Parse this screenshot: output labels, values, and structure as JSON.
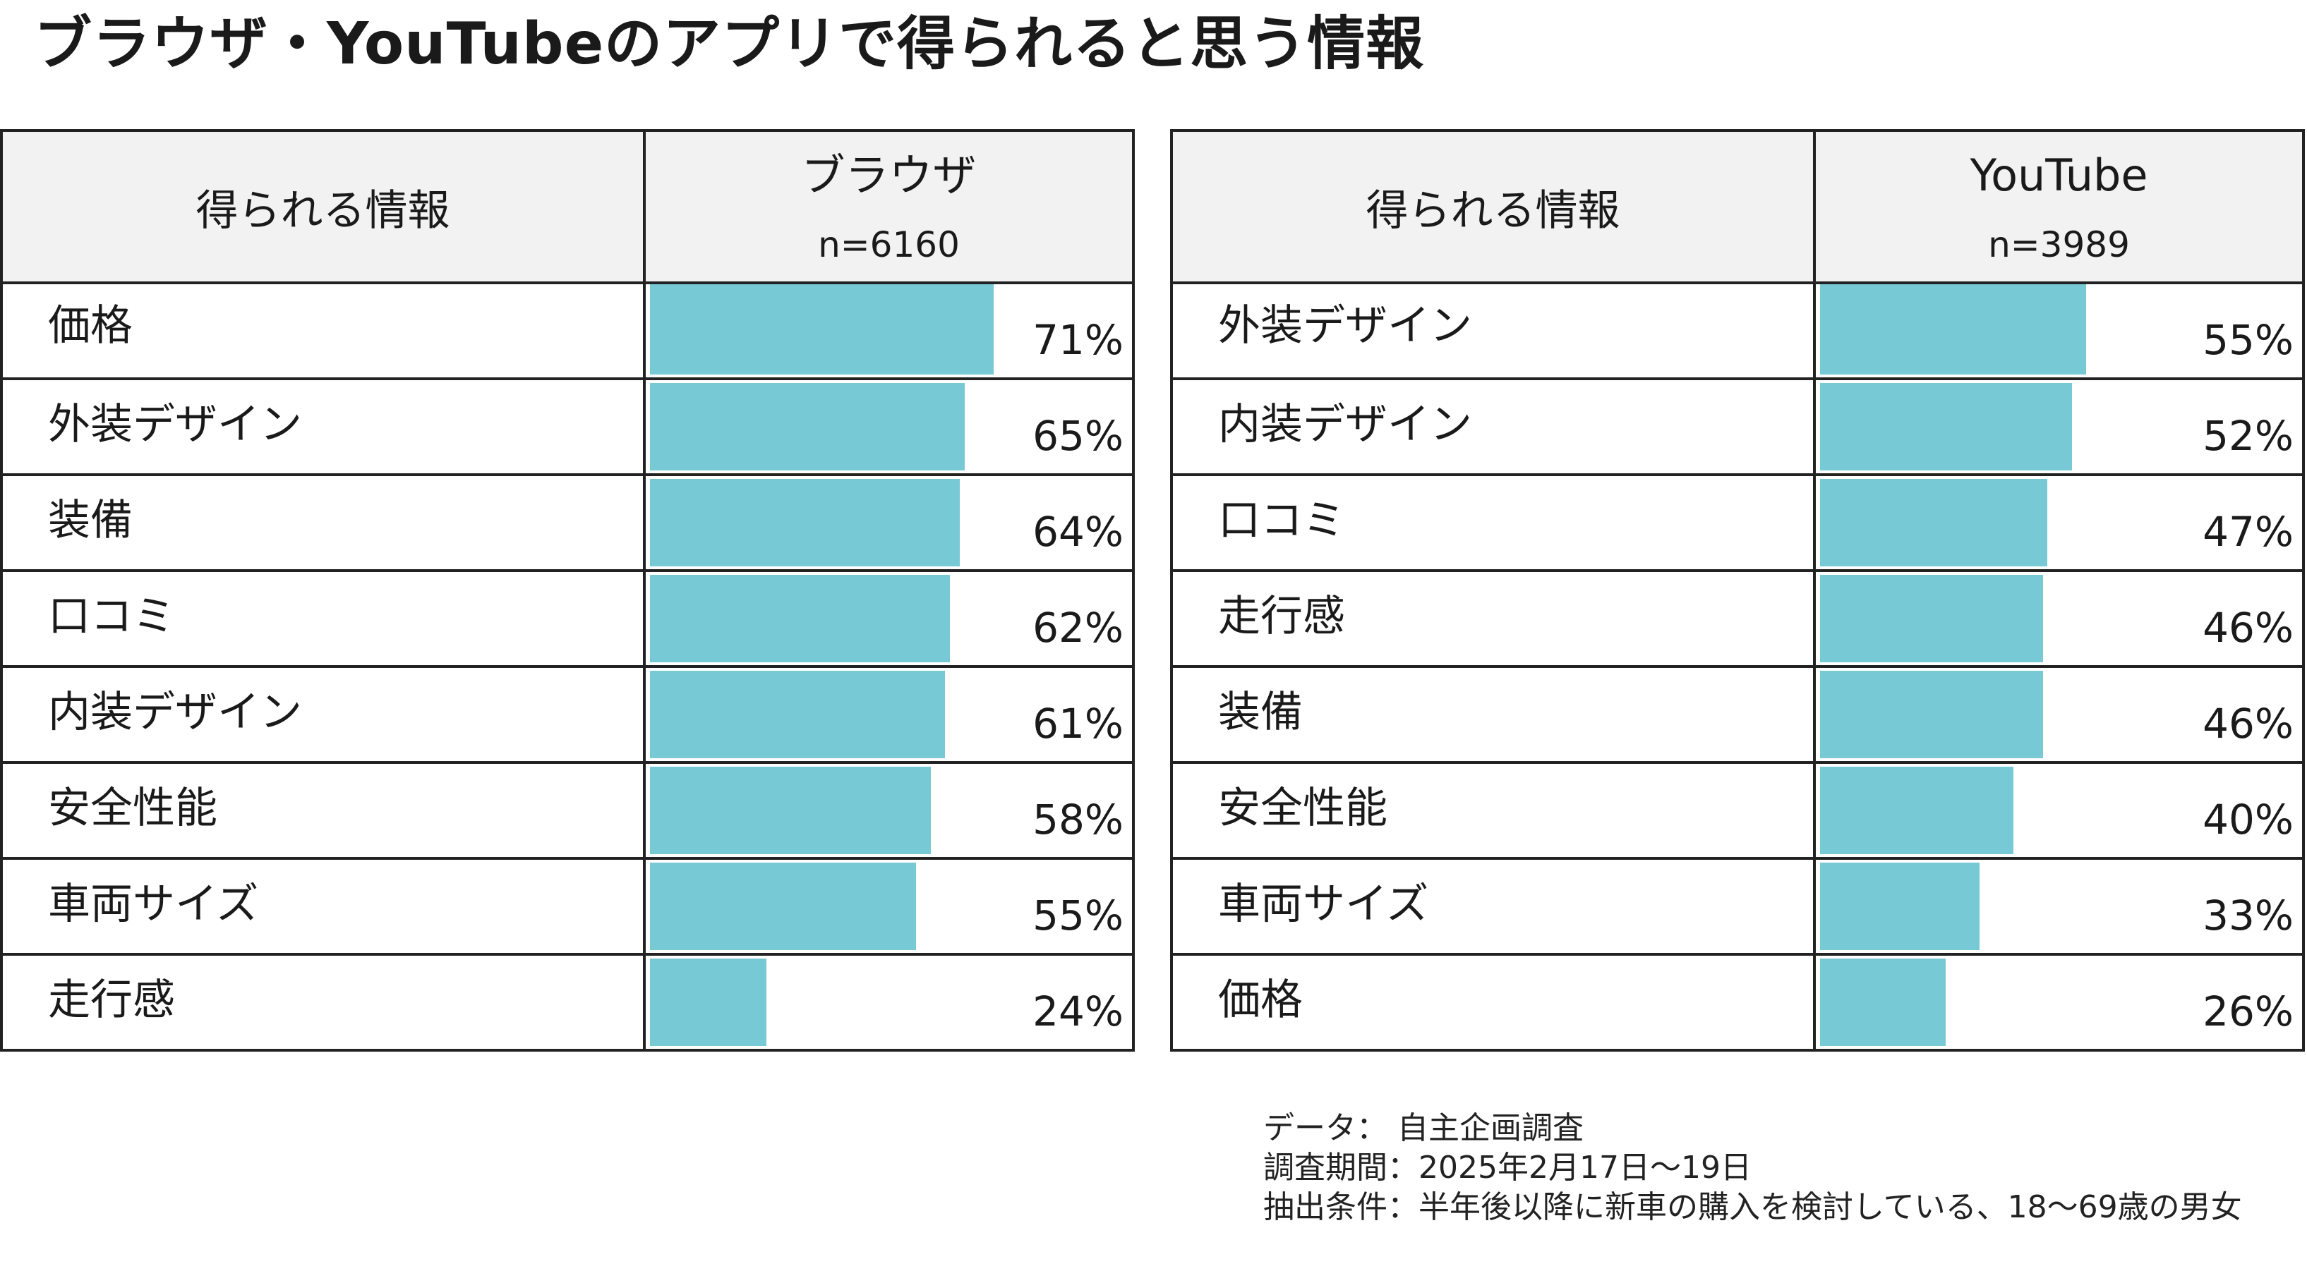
{
  "title": "ブラウザ・YouTubeのアプリで得られると思う情報",
  "chart_data": [
    {
      "type": "bar",
      "orientation": "horizontal",
      "header_label": "得られる情報",
      "series_name": "ブラウザ",
      "n_label": "n=6160",
      "categories": [
        "価格",
        "外装デザイン",
        "装備",
        "口コミ",
        "内装デザイン",
        "安全性能",
        "車両サイズ",
        "走行感"
      ],
      "values": [
        71,
        65,
        64,
        62,
        61,
        58,
        55,
        24
      ],
      "value_labels": [
        "71%",
        "65%",
        "64%",
        "62%",
        "61%",
        "58%",
        "55%",
        "24%"
      ],
      "unit": "%",
      "xlim": [
        0,
        100
      ],
      "bar_color": "#77c9d6"
    },
    {
      "type": "bar",
      "orientation": "horizontal",
      "header_label": "得られる情報",
      "series_name": "YouTube",
      "n_label": "n=3989",
      "categories": [
        "外装デザイン",
        "内装デザイン",
        "口コミ",
        "走行感",
        "装備",
        "安全性能",
        "車両サイズ",
        "価格"
      ],
      "values": [
        55,
        52,
        47,
        46,
        46,
        40,
        33,
        26
      ],
      "value_labels": [
        "55%",
        "52%",
        "47%",
        "46%",
        "46%",
        "40%",
        "33%",
        "26%"
      ],
      "unit": "%",
      "xlim": [
        0,
        100
      ],
      "bar_color": "#77c9d6"
    }
  ],
  "source": {
    "line1": "データ： 自主企画調査",
    "line2": "調査期間：2025年2月17日～19日",
    "line3": "抽出条件：半年後以降に新車の購入を検討している、18～69歳の男女"
  }
}
